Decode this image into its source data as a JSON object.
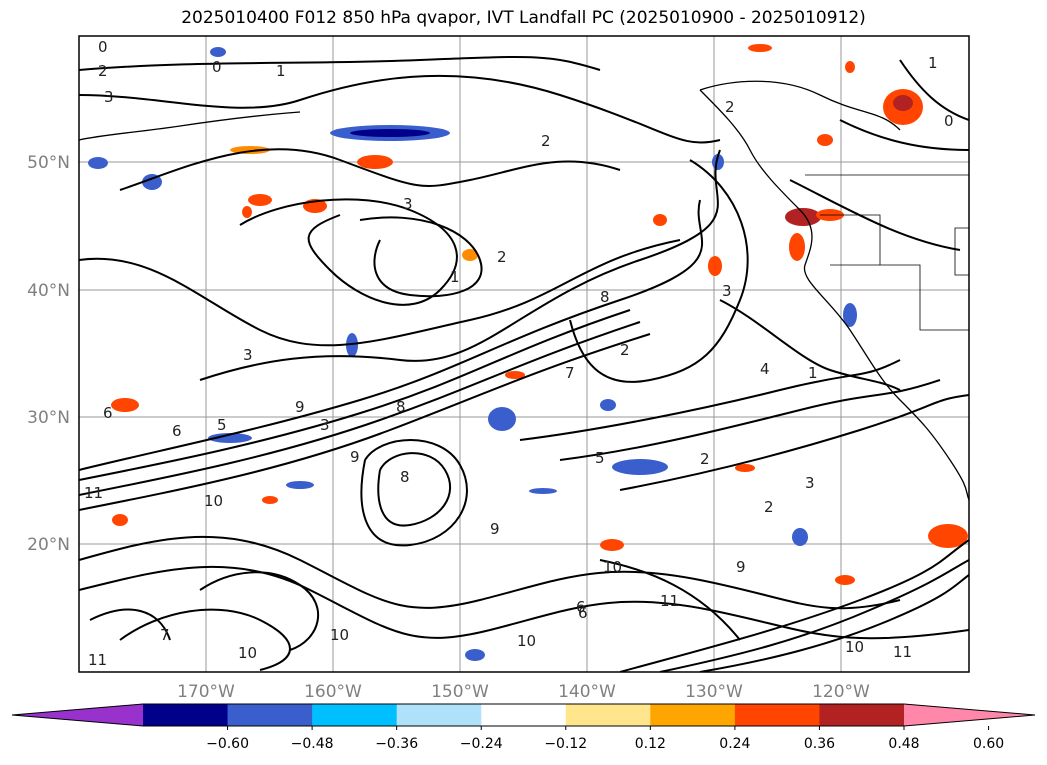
{
  "title": "2025010400 F012 850 hPa qvapor, IVT Landfall PC (2025010900 - 2025010912)",
  "lat_labels": [
    "50°N",
    "40°N",
    "30°N",
    "20°N"
  ],
  "lon_labels": [
    "170°W",
    "160°W",
    "150°W",
    "140°W",
    "130°W",
    "120°W"
  ],
  "colorbar": {
    "ticks": [
      "−0.60",
      "−0.48",
      "−0.36",
      "−0.24",
      "−0.12",
      "0.12",
      "0.24",
      "0.36",
      "0.48",
      "0.60"
    ],
    "colors": [
      "#9932cc",
      "#00008b",
      "#3a5fcd",
      "#00bfff",
      "#afe1fa",
      "#ffffff",
      "#ffe68c",
      "#ffa500",
      "#ff4500",
      "#b22222",
      "#ff88aa"
    ]
  },
  "contour_labels": [
    "0",
    "2",
    "3",
    "0",
    "1",
    "3",
    "3",
    "2",
    "1",
    "2",
    "8",
    "7",
    "2",
    "3",
    "4",
    "6",
    "8",
    "9",
    "6",
    "5",
    "3",
    "5",
    "10",
    "8",
    "9",
    "11",
    "10",
    "9",
    "6",
    "7",
    "10",
    "11",
    "10",
    "2",
    "2",
    "3",
    "10",
    "9",
    "6",
    "11",
    "10",
    "11",
    "1",
    "2",
    "0",
    "1"
  ],
  "colors": {
    "contour": "#000000",
    "grid": "#999999",
    "frame": "#000000"
  }
}
